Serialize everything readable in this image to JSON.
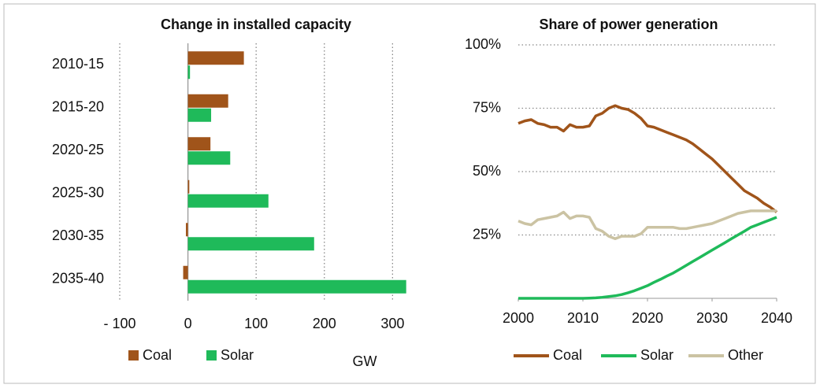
{
  "chart_data": [
    {
      "type": "hbar",
      "title": "Change in installed capacity",
      "xlabel": "GW",
      "categories": [
        "2010-15",
        "2015-20",
        "2020-25",
        "2025-30",
        "2030-35",
        "2035-40"
      ],
      "series": [
        {
          "name": "Coal",
          "color": "#a0541a",
          "values": [
            82,
            59,
            33,
            2,
            -3,
            -7
          ]
        },
        {
          "name": "Solar",
          "color": "#1fba5a",
          "values": [
            3,
            34,
            62,
            118,
            185,
            320
          ]
        }
      ],
      "xlim": [
        -100,
        325
      ],
      "xticks": [
        {
          "value": -100,
          "label": "- 100"
        },
        0,
        100,
        200,
        300
      ],
      "grid": true
    },
    {
      "type": "line",
      "title": "Share of power generation",
      "x": [
        2000,
        2001,
        2002,
        2003,
        2004,
        2005,
        2006,
        2007,
        2008,
        2009,
        2010,
        2011,
        2012,
        2013,
        2014,
        2015,
        2016,
        2017,
        2018,
        2019,
        2020,
        2021,
        2022,
        2023,
        2024,
        2025,
        2026,
        2027,
        2028,
        2029,
        2030,
        2031,
        2032,
        2033,
        2034,
        2035,
        2036,
        2037,
        2038,
        2039,
        2040
      ],
      "series": [
        {
          "name": "Coal",
          "color": "#a0541a",
          "values": [
            69,
            70,
            70.5,
            69,
            68.5,
            67.5,
            67.5,
            66,
            68.5,
            67.5,
            67.5,
            68,
            72,
            73,
            75,
            76,
            75,
            74.5,
            73,
            71,
            68,
            67.5,
            66.5,
            65.5,
            64.5,
            63.5,
            62.5,
            61,
            59,
            57,
            55,
            52.5,
            50,
            47.5,
            45,
            42.5,
            41,
            39.5,
            37.5,
            36,
            34
          ]
        },
        {
          "name": "Solar",
          "color": "#1fba5a",
          "values": [
            0,
            0,
            0,
            0,
            0,
            0,
            0,
            0,
            0,
            0,
            0,
            0.1,
            0.2,
            0.4,
            0.7,
            1,
            1.5,
            2.2,
            3,
            4,
            5,
            6.3,
            7.5,
            8.8,
            10,
            11.5,
            13,
            14.5,
            16,
            17.5,
            19,
            20.5,
            22,
            23.5,
            25,
            26.5,
            28,
            29,
            30,
            31,
            32
          ]
        },
        {
          "name": "Other",
          "color": "#cbc3a3",
          "values": [
            30.5,
            29.5,
            29,
            31,
            31.5,
            32,
            32.5,
            34,
            31.5,
            32.5,
            32.5,
            32,
            27.5,
            26.5,
            24.5,
            23.5,
            24.5,
            24.5,
            24.5,
            25.5,
            28,
            28,
            28,
            28,
            28,
            27.5,
            27.5,
            28,
            28.5,
            29,
            29.5,
            30.5,
            31.5,
            32.5,
            33.5,
            34,
            34.5,
            34.5,
            34.5,
            34.5,
            34.5
          ]
        }
      ],
      "xlim": [
        2000,
        2040
      ],
      "xticks": [
        2000,
        2010,
        2020,
        2030,
        2040
      ],
      "ylim": [
        0,
        100
      ],
      "yticks": [
        {
          "value": 25,
          "label": "25%"
        },
        {
          "value": 50,
          "label": "50%"
        },
        {
          "value": 75,
          "label": "75%"
        },
        {
          "value": 100,
          "label": "100%"
        }
      ],
      "grid": true
    }
  ]
}
